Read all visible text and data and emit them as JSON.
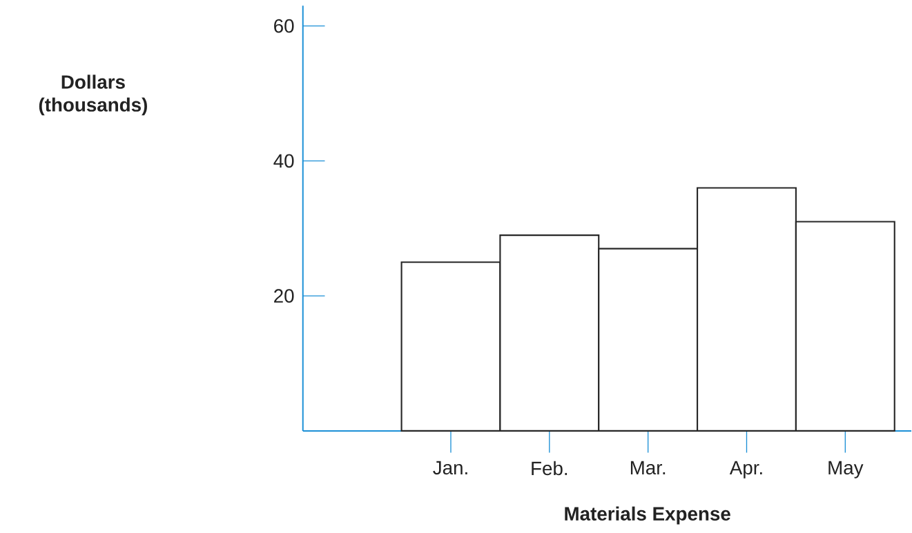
{
  "chart_data": {
    "type": "bar",
    "xlabel": "Materials Expense",
    "annotations": [
      "Dollars (thousands)"
    ],
    "categories": [
      "Jan.",
      "Feb.",
      "Mar.",
      "Apr.",
      "May"
    ],
    "values": [
      25,
      29,
      27,
      36,
      31
    ],
    "color": "#ffffff",
    "ylim": [
      0,
      63
    ],
    "yticks": [
      20,
      40,
      60
    ]
  }
}
